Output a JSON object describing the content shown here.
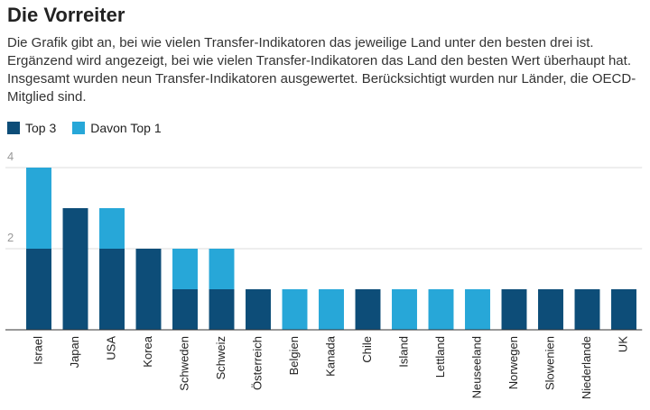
{
  "chart_data": {
    "type": "stacked_bar",
    "title": "Die Vorreiter",
    "subtitle": "Die Grafik gibt an, bei wie vielen Transfer-Indikatoren das jeweilige Land unter den besten drei ist. Ergänzend wird angezeigt, bei wie vielen Transfer-Indikatoren das Land den besten Wert überhaupt hat. Insgesamt wurden neun Transfer-Indikatoren ausgewertet. Berücksichtigt wurden nur Länder, die OECD-Mitglied sind.",
    "categories": [
      "Israel",
      "Japan",
      "USA",
      "Korea",
      "Schweden",
      "Schweiz",
      "Österreich",
      "Belgien",
      "Kanada",
      "Chile",
      "Island",
      "Lettland",
      "Neuseeland",
      "Norwegen",
      "Slowenien",
      "Niederlande",
      "UK"
    ],
    "series": [
      {
        "name": "Top 3",
        "color": "#0d4d78",
        "values": [
          2,
          3,
          2,
          2,
          1,
          1,
          1,
          0,
          0,
          1,
          0,
          0,
          0,
          1,
          1,
          1,
          1
        ]
      },
      {
        "name": "Davon Top 1",
        "color": "#27a7d8",
        "values": [
          2,
          0,
          1,
          0,
          1,
          1,
          0,
          1,
          1,
          0,
          1,
          1,
          1,
          0,
          0,
          0,
          0
        ]
      }
    ],
    "ylim": [
      0,
      4
    ],
    "yticks": [
      2,
      4
    ],
    "grid": true
  }
}
